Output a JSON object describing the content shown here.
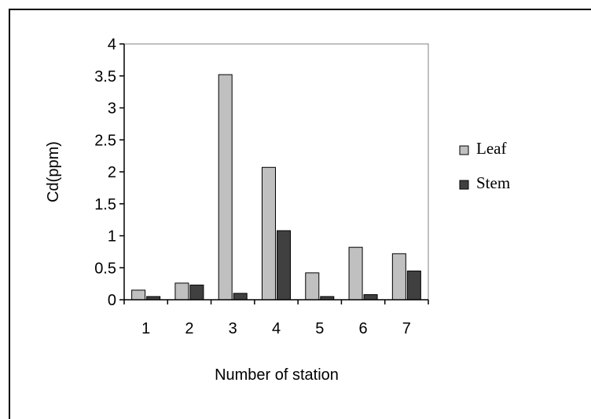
{
  "chart_data": {
    "type": "bar",
    "categories": [
      "1",
      "2",
      "3",
      "4",
      "5",
      "6",
      "7"
    ],
    "series": [
      {
        "name": "Leaf",
        "values": [
          0.15,
          0.26,
          3.52,
          2.07,
          0.42,
          0.82,
          0.72
        ],
        "color": "#c0c0c0"
      },
      {
        "name": "Stem",
        "values": [
          0.05,
          0.23,
          0.1,
          1.08,
          0.05,
          0.08,
          0.45
        ],
        "color": "#404040"
      }
    ],
    "xlabel": "Number of station",
    "ylabel": "Cd(ppm)",
    "ylim": [
      0,
      4
    ],
    "yticks": [
      "0",
      "0.5",
      "1",
      "1.5",
      "2",
      "2.5",
      "3",
      "3.5",
      "4"
    ],
    "grid": false,
    "legend_position": "right"
  }
}
